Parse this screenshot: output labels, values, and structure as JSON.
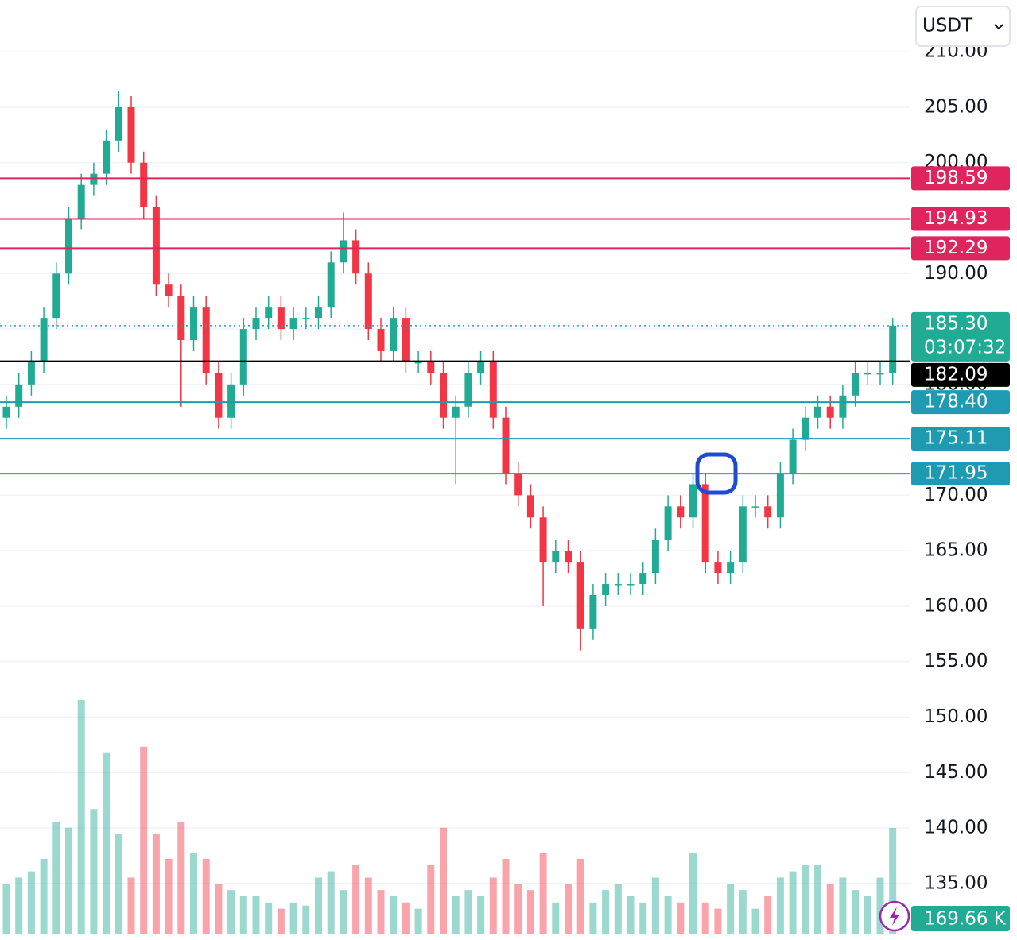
{
  "chart_data": {
    "type": "candlestick",
    "currency": "USDT",
    "up_color": "#22ab94",
    "down_color": "#f23645",
    "ylim": [
      129.9,
      214.67
    ],
    "yticks": [
      {
        "value": 135,
        "label": "135.00"
      },
      {
        "value": 140,
        "label": "140.00"
      },
      {
        "value": 145,
        "label": "145.00"
      },
      {
        "value": 150,
        "label": "150.00"
      },
      {
        "value": 155,
        "label": "155.00"
      },
      {
        "value": 160,
        "label": "160.00"
      },
      {
        "value": 165,
        "label": "165.00"
      },
      {
        "value": 170,
        "label": "170.00"
      },
      {
        "value": 175,
        "label": "175.00"
      },
      {
        "value": 180,
        "label": "180.00"
      },
      {
        "value": 185,
        "label": "185.00"
      },
      {
        "value": 190,
        "label": "190.00"
      },
      {
        "value": 195,
        "label": "195.00"
      },
      {
        "value": 200,
        "label": "200.00"
      },
      {
        "value": 205,
        "label": "205.00"
      },
      {
        "value": 210,
        "label": "210.00"
      }
    ],
    "grid": true,
    "open": [
      177,
      178,
      180,
      182,
      186,
      190,
      195,
      198,
      199,
      202,
      205,
      200,
      196,
      189,
      188,
      184,
      187,
      181,
      177,
      180,
      185,
      186,
      187,
      185,
      186,
      186,
      187,
      191,
      193,
      190,
      185,
      183,
      186,
      182,
      182,
      181,
      177,
      178,
      181,
      182,
      177,
      172,
      170,
      168,
      164,
      165,
      164,
      158,
      161,
      162,
      162,
      162,
      163,
      166,
      169,
      168,
      171,
      164,
      163,
      164,
      169,
      169,
      168,
      172,
      175,
      177,
      178,
      177,
      179,
      181,
      181,
      181
    ],
    "high": [
      179,
      181,
      183,
      187,
      191,
      196,
      199,
      200,
      203,
      206.5,
      206,
      201,
      197,
      190,
      189,
      188,
      188,
      182,
      181,
      186,
      187,
      188,
      188,
      187,
      187,
      188,
      192,
      195.5,
      194,
      191,
      186,
      187,
      187,
      183,
      183,
      182,
      179,
      182,
      183,
      183,
      178,
      173,
      171,
      169,
      166,
      166,
      165,
      162,
      163,
      163,
      163,
      164,
      167,
      170,
      170,
      172,
      172,
      165,
      165,
      170,
      170,
      170,
      173,
      176,
      178,
      179,
      179,
      180,
      182,
      182,
      182,
      186
    ],
    "low": [
      176,
      177,
      179,
      181,
      185,
      189,
      194,
      197,
      198,
      201,
      199,
      195,
      188,
      187,
      178,
      183,
      180,
      176,
      176,
      179,
      184,
      185,
      184,
      184,
      185,
      185,
      186,
      190,
      189,
      184,
      182,
      182,
      181,
      181,
      180,
      176,
      171,
      177,
      180,
      176,
      171,
      169,
      167,
      160,
      163,
      163,
      156,
      157,
      160,
      161,
      161,
      161,
      162,
      165,
      167,
      167,
      163,
      162,
      162,
      163,
      168,
      167,
      167,
      171,
      174,
      176,
      176,
      176,
      178,
      180,
      180,
      180
    ],
    "close": [
      178,
      180,
      182,
      186,
      190,
      195,
      198,
      199,
      202,
      205,
      200,
      196,
      189,
      188,
      184,
      187,
      181,
      177,
      180,
      185,
      186,
      187,
      185,
      186,
      186,
      187,
      191,
      193,
      190,
      185,
      183,
      186,
      182,
      182,
      181,
      177,
      178,
      181,
      182,
      177,
      172,
      170,
      168,
      164,
      165,
      164,
      158,
      161,
      162,
      162,
      162,
      163,
      166,
      169,
      168,
      171,
      164,
      163,
      164,
      169,
      169,
      168,
      172,
      175,
      177,
      178,
      177,
      179,
      181,
      181,
      181,
      185.3
    ],
    "volume": {
      "values": [
        80,
        90,
        100,
        120,
        180,
        170,
        375,
        200,
        290,
        160,
        90,
        300,
        160,
        120,
        180,
        130,
        120,
        80,
        70,
        60,
        60,
        50,
        40,
        50,
        45,
        90,
        100,
        70,
        110,
        90,
        70,
        60,
        50,
        40,
        110,
        170,
        60,
        70,
        60,
        90,
        120,
        80,
        70,
        130,
        50,
        80,
        120,
        50,
        70,
        80,
        60,
        50,
        90,
        60,
        50,
        130,
        50,
        40,
        80,
        70,
        40,
        60,
        90,
        100,
        110,
        110,
        80,
        90,
        70,
        60,
        90,
        169.66
      ],
      "ylim": [
        0,
        1499
      ],
      "last_label": "169.66 K"
    },
    "price_lines": [
      {
        "value": 198.59,
        "label": "198.59",
        "color": "#e0245e",
        "style": "solid"
      },
      {
        "value": 194.93,
        "label": "194.93",
        "color": "#e0245e",
        "style": "solid"
      },
      {
        "value": 192.29,
        "label": "192.29",
        "color": "#e0245e",
        "style": "solid"
      },
      {
        "value": 185.3,
        "label": "185.30",
        "color": "#22ab94",
        "style": "dotted",
        "countdown": "03:07:32"
      },
      {
        "value": 182.09,
        "label": "182.09",
        "color": "#000000",
        "style": "solid"
      },
      {
        "value": 178.4,
        "label": "178.40",
        "color": "#1e9bb0",
        "style": "solid"
      },
      {
        "value": 175.11,
        "label": "175.11",
        "color": "#1e9bb0",
        "style": "solid"
      },
      {
        "value": 171.95,
        "label": "171.95",
        "color": "#1e9bb0",
        "style": "solid"
      }
    ]
  }
}
